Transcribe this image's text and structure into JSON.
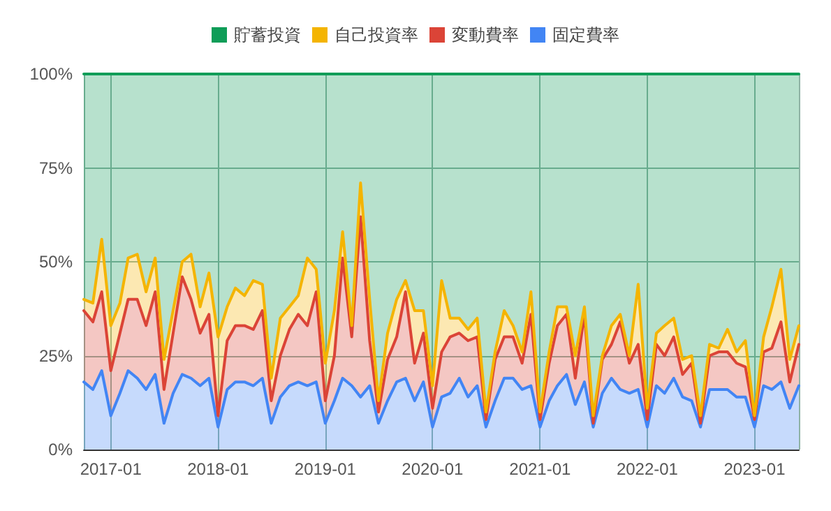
{
  "chart_data": {
    "type": "area",
    "stacked": true,
    "legend": "top",
    "grid": true,
    "x": [
      "2016-10",
      "2016-11",
      "2016-12",
      "2017-01",
      "2017-02",
      "2017-03",
      "2017-04",
      "2017-05",
      "2017-06",
      "2017-07",
      "2017-08",
      "2017-09",
      "2017-10",
      "2017-11",
      "2017-12",
      "2018-01",
      "2018-02",
      "2018-03",
      "2018-04",
      "2018-05",
      "2018-06",
      "2018-07",
      "2018-08",
      "2018-09",
      "2018-10",
      "2018-11",
      "2018-12",
      "2019-01",
      "2019-02",
      "2019-03",
      "2019-04",
      "2019-05",
      "2019-06",
      "2019-07",
      "2019-08",
      "2019-09",
      "2019-10",
      "2019-11",
      "2019-12",
      "2020-01",
      "2020-02",
      "2020-03",
      "2020-04",
      "2020-05",
      "2020-06",
      "2020-07",
      "2020-08",
      "2020-09",
      "2020-10",
      "2020-11",
      "2020-12",
      "2021-01",
      "2021-02",
      "2021-03",
      "2021-04",
      "2021-05",
      "2021-06",
      "2021-07",
      "2021-08",
      "2021-09",
      "2021-10",
      "2021-11",
      "2021-12",
      "2022-01",
      "2022-02",
      "2022-03",
      "2022-04",
      "2022-05",
      "2022-06",
      "2022-07",
      "2022-08",
      "2022-09",
      "2022-10",
      "2022-11",
      "2022-12",
      "2023-01",
      "2023-02",
      "2023-03",
      "2023-04",
      "2023-05",
      "2023-06"
    ],
    "xlim": [
      "2016-10",
      "2023-06"
    ],
    "xticks": [
      "2017-01",
      "2018-01",
      "2019-01",
      "2020-01",
      "2021-01",
      "2022-01",
      "2023-01"
    ],
    "ylim": [
      0,
      100
    ],
    "yticks": [
      {
        "value": 0,
        "label": "0%"
      },
      {
        "value": 25,
        "label": "25%"
      },
      {
        "value": 50,
        "label": "50%"
      },
      {
        "value": 75,
        "label": "75%"
      },
      {
        "value": 100,
        "label": "100%"
      }
    ],
    "series": [
      {
        "name": "固定費率",
        "color": "#4285f4",
        "values": [
          18,
          16,
          21,
          9,
          15,
          21,
          19,
          16,
          20,
          7,
          15,
          20,
          19,
          17,
          19,
          6,
          16,
          18,
          18,
          17,
          19,
          7,
          14,
          17,
          18,
          17,
          18,
          7,
          13,
          19,
          17,
          14,
          17,
          7,
          13,
          18,
          19,
          13,
          18,
          6,
          14,
          15,
          19,
          14,
          17,
          6,
          13,
          19,
          19,
          16,
          17,
          6,
          13,
          17,
          20,
          12,
          18,
          6,
          15,
          19,
          16,
          15,
          16,
          6,
          17,
          15,
          19,
          14,
          13,
          6,
          16,
          16,
          16,
          14,
          14,
          6,
          17,
          16,
          18,
          11,
          17
        ]
      },
      {
        "name": "変動費率",
        "color": "#db4437",
        "values": [
          19,
          18,
          21,
          12,
          16,
          19,
          21,
          17,
          22,
          9,
          16,
          26,
          21,
          14,
          17,
          3,
          13,
          15,
          15,
          15,
          18,
          6,
          11,
          15,
          18,
          16,
          24,
          6,
          12,
          32,
          13,
          48,
          12,
          3,
          11,
          12,
          23,
          10,
          13,
          5,
          12,
          15,
          12,
          15,
          13,
          2,
          11,
          11,
          11,
          7,
          19,
          2,
          10,
          16,
          16,
          7,
          18,
          1,
          9,
          9,
          18,
          8,
          12,
          2,
          11,
          10,
          11,
          6,
          10,
          1,
          9,
          10,
          10,
          9,
          8,
          2,
          9,
          11,
          16,
          7,
          11
        ]
      },
      {
        "name": "自己投資率",
        "color": "#f4b400",
        "values": [
          3,
          5,
          14,
          12,
          8,
          11,
          12,
          9,
          9,
          8,
          6,
          4,
          12,
          7,
          11,
          21,
          9,
          10,
          8,
          13,
          7,
          6,
          10,
          6,
          5,
          18,
          6,
          10,
          12,
          7,
          3,
          9,
          11,
          3,
          7,
          10,
          3,
          14,
          6,
          6,
          19,
          5,
          4,
          3,
          5,
          2,
          2,
          7,
          3,
          3,
          6,
          2,
          3,
          5,
          2,
          6,
          2,
          2,
          1,
          5,
          2,
          2,
          16,
          3,
          3,
          8,
          5,
          4,
          2,
          2,
          3,
          1,
          6,
          3,
          7,
          1,
          4,
          11,
          14,
          6,
          5
        ]
      },
      {
        "name": "貯蓄投資",
        "color": "#0f9d58",
        "values": [
          60,
          61,
          44,
          67,
          61,
          49,
          48,
          58,
          49,
          76,
          63,
          50,
          48,
          62,
          53,
          70,
          62,
          57,
          59,
          55,
          56,
          81,
          65,
          62,
          59,
          49,
          52,
          77,
          63,
          42,
          67,
          29,
          60,
          87,
          69,
          60,
          55,
          63,
          63,
          83,
          55,
          65,
          65,
          68,
          65,
          90,
          74,
          63,
          67,
          74,
          58,
          90,
          74,
          62,
          62,
          75,
          62,
          91,
          75,
          67,
          64,
          75,
          56,
          89,
          69,
          67,
          65,
          76,
          75,
          91,
          72,
          73,
          68,
          74,
          71,
          91,
          70,
          62,
          52,
          76,
          67
        ]
      }
    ]
  }
}
